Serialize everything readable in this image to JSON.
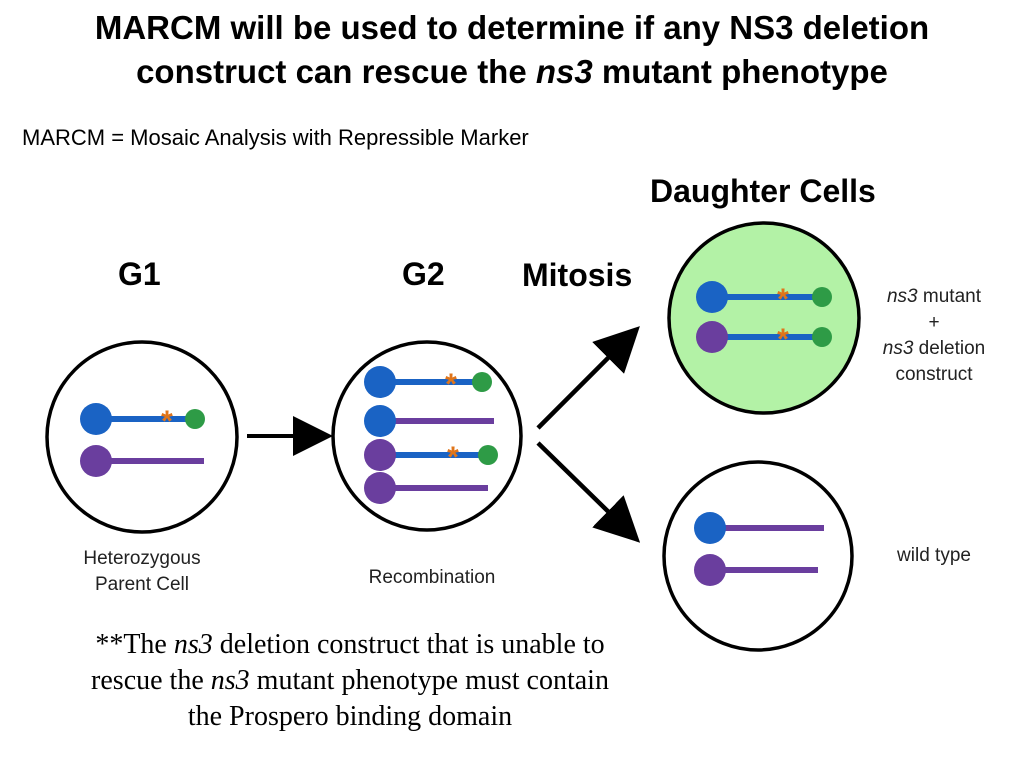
{
  "title": {
    "line1": "MARCM will be used to determine if any NS3 deletion",
    "line2_pre": "construct can rescue the ",
    "line2_em": "ns3",
    "line2_post": " mutant phenotype"
  },
  "subtitle": "MARCM = Mosaic Analysis with Repressible Marker",
  "stages": {
    "g1": "G1",
    "g2": "G2",
    "mitosis": "Mitosis",
    "daughter": "Daughter Cells"
  },
  "labels": {
    "parent_line1": "Heterozygous",
    "parent_line2": "Parent Cell",
    "recombination": "Recombination",
    "mutant_l1_em": "ns3",
    "mutant_l1_rest": " mutant",
    "mutant_l2": "+",
    "mutant_l3_em": "ns3",
    "mutant_l3_rest": " deletion",
    "mutant_l4": "construct",
    "wild_type": "wild type"
  },
  "footnote": {
    "p1": "**The ",
    "e1": "ns3",
    "p2": " deletion construct that is unable to",
    "p3": "rescue the ",
    "e2": "ns3",
    "p4": " mutant phenotype must contain",
    "p5": "the Prospero binding domain"
  },
  "colors": {
    "blue": "#1a63c4",
    "purple": "#6a3e9e",
    "green": "#2e9b46",
    "orange": "#e0751a",
    "cell_fill_mutant": "#b3f2a6"
  }
}
